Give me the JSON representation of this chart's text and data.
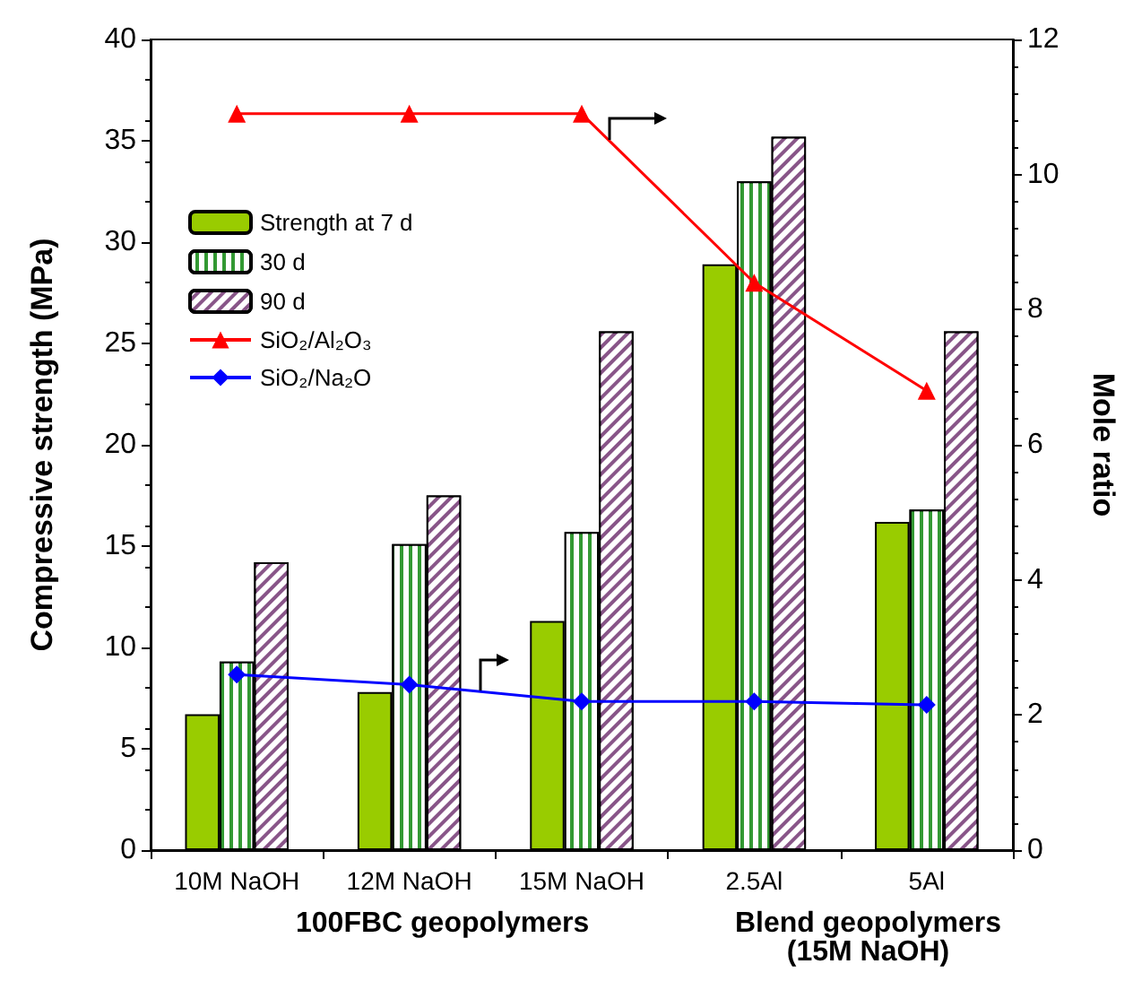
{
  "chart_data": {
    "type": "bar",
    "ylabel": "Compressive strength (MPa)",
    "y2label": "Mole ratio",
    "categories": [
      "10M NaOH",
      "12M NaOH",
      "15M NaOH",
      "2.5Al",
      "5Al"
    ],
    "series": [
      {
        "name": "Strength at 7 d",
        "color": "#99cc00",
        "values": [
          6.7,
          7.8,
          11.3,
          28.9,
          16.2
        ]
      },
      {
        "name": "30 d",
        "color": "#339933",
        "values": [
          9.3,
          15.1,
          15.7,
          33.0,
          16.8
        ]
      },
      {
        "name": "90 d",
        "color": "#885588",
        "values": [
          14.2,
          17.5,
          25.6,
          35.2,
          25.6
        ]
      },
      {
        "name": "SiO₂/Al₂O₃",
        "type": "line",
        "axis": "y2",
        "marker": "triangle",
        "color": "#ff0000",
        "values": [
          10.9,
          10.9,
          10.9,
          8.4,
          6.8
        ]
      },
      {
        "name": "SiO₂/Na₂O",
        "type": "line",
        "axis": "y2",
        "marker": "diamond",
        "color": "#0000ff",
        "values": [
          2.6,
          2.45,
          2.2,
          2.2,
          2.15
        ]
      }
    ],
    "ylim": [
      0,
      40
    ],
    "yticks": [
      0,
      5,
      10,
      15,
      20,
      25,
      30,
      35,
      40
    ],
    "y2lim": [
      0,
      12
    ],
    "y2ticks": [
      0,
      2,
      4,
      6,
      8,
      10,
      12
    ],
    "annotations": [
      "100FBC geopolymers",
      "Blend geopolymers\n(15M NaOH)"
    ],
    "legend": "top left",
    "grid": false
  }
}
